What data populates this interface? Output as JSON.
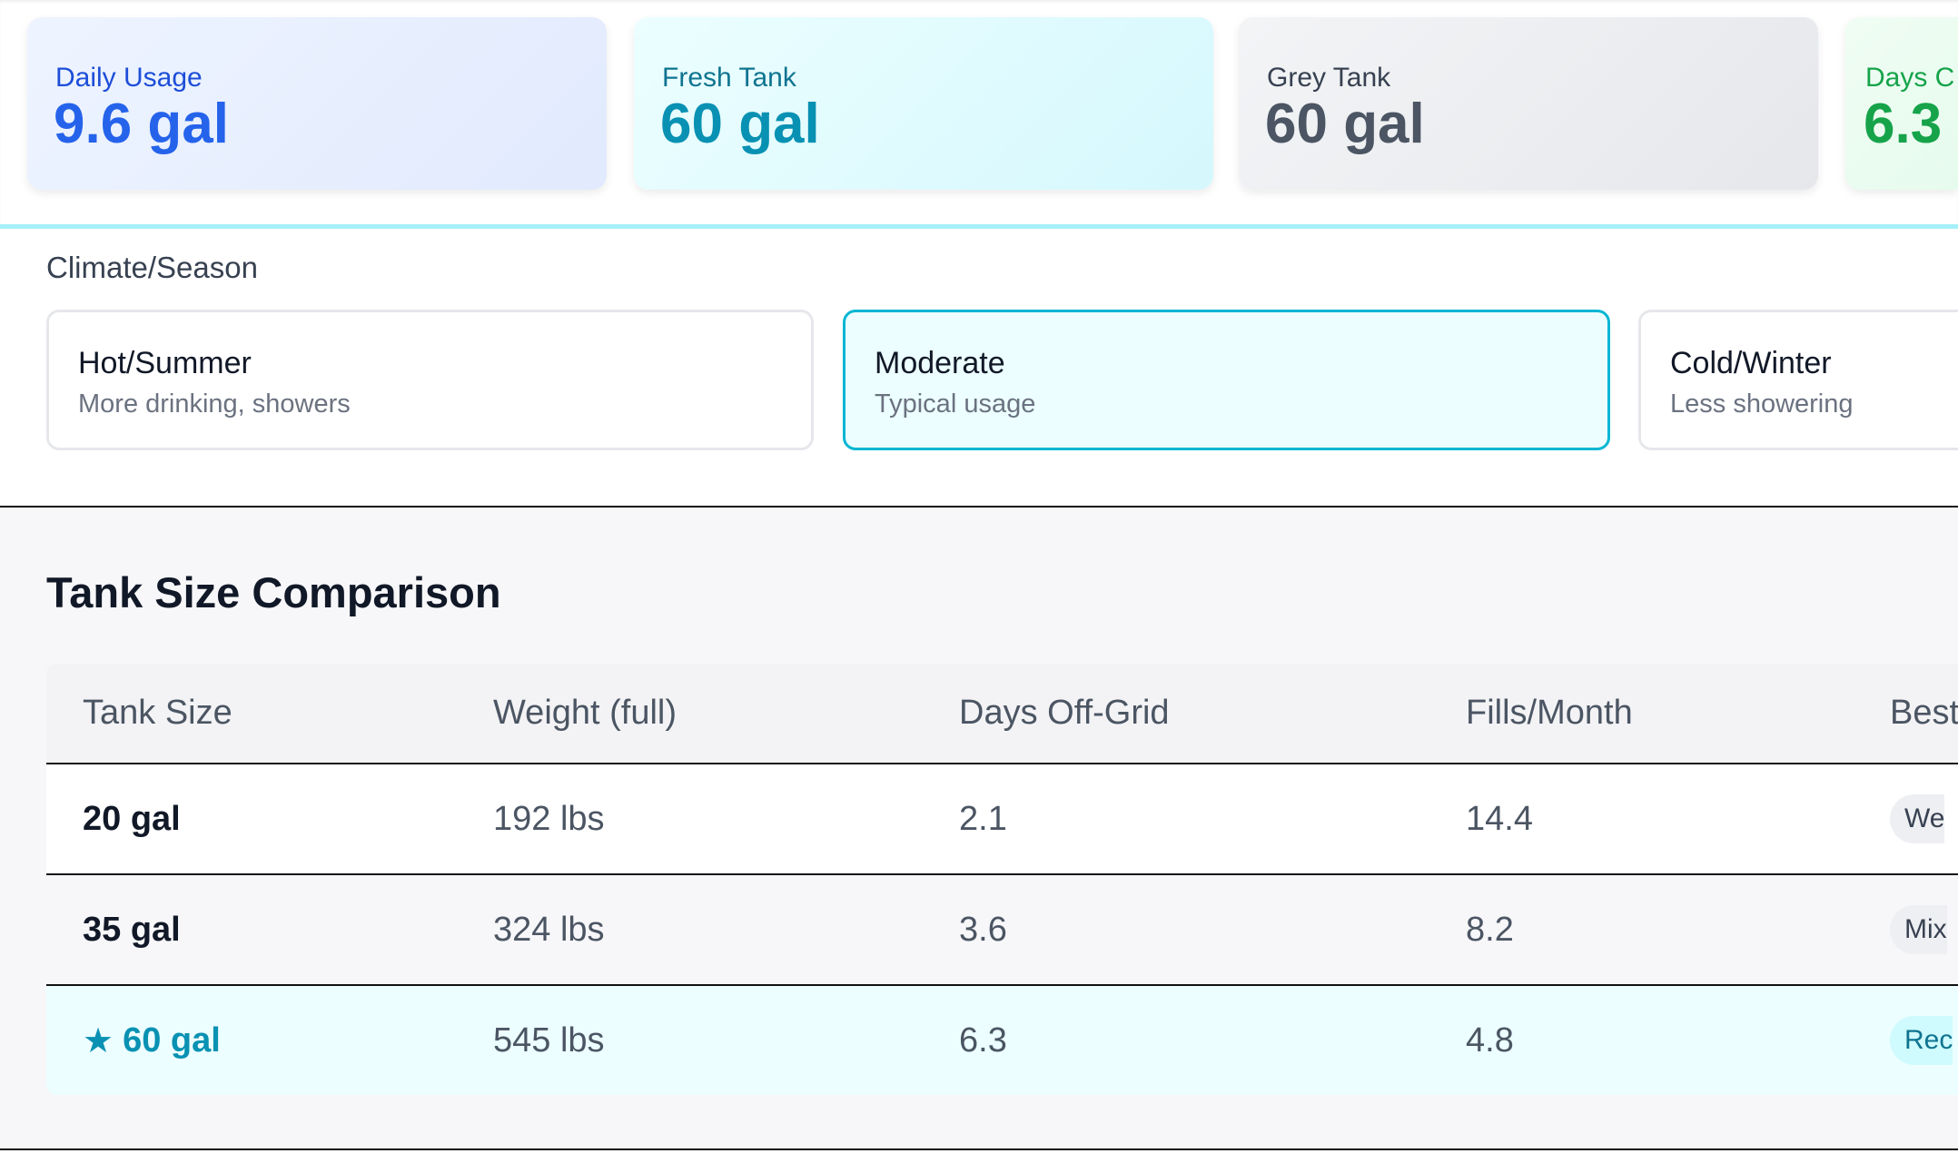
{
  "stats": [
    {
      "label": "Daily Usage",
      "value": "9.6 gal",
      "color": "#2563eb"
    },
    {
      "label": "Fresh Tank",
      "value": "60 gal",
      "color": "#0891b2"
    },
    {
      "label": "Grey Tank",
      "value": "60 gal",
      "color": "#4b5563"
    },
    {
      "label": "Days C",
      "value": "6.3",
      "color": "#16a34a"
    }
  ],
  "climate": {
    "label": "Climate/Season",
    "options": [
      {
        "title": "Hot/Summer",
        "desc": "More drinking, showers",
        "selected": false
      },
      {
        "title": "Moderate",
        "desc": "Typical usage",
        "selected": true
      },
      {
        "title": "Cold/Winter",
        "desc": "Less showering",
        "selected": false
      }
    ]
  },
  "comparison": {
    "title": "Tank Size Comparison",
    "headers": [
      "Tank Size",
      "Weight (full)",
      "Days Off-Grid",
      "Fills/Month",
      "Best"
    ],
    "rows": [
      {
        "size": "20 gal",
        "weight": "192 lbs",
        "days": "2.1",
        "fills": "14.4",
        "best": "We",
        "recommended": false
      },
      {
        "size": "35 gal",
        "weight": "324 lbs",
        "days": "3.6",
        "fills": "8.2",
        "best": "Mix",
        "recommended": false
      },
      {
        "size": "60 gal",
        "weight": "545 lbs",
        "days": "6.3",
        "fills": "4.8",
        "best": "Rec",
        "recommended": true,
        "icon": "star-icon"
      }
    ]
  },
  "colors": {
    "accent": "#06b6d4",
    "selected_bg": "#ecfeff"
  }
}
